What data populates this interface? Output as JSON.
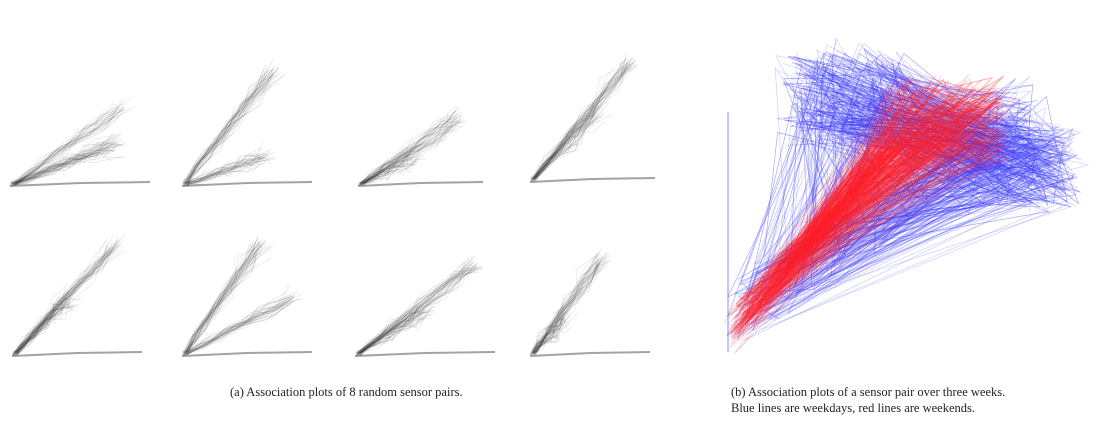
{
  "figure": {
    "panel_a": {
      "caption": "(a)  Association plots of 8 random sensor pairs.",
      "plot_count": 8,
      "line_color": "#333333"
    },
    "panel_b": {
      "caption_line1": "(b)  Association plots of a sensor pair over three weeks.",
      "caption_line2": "Blue lines are weekdays, red lines are weekends.",
      "weekday_color": "#3b3bff",
      "weekend_color": "#ff1f2a"
    }
  }
}
